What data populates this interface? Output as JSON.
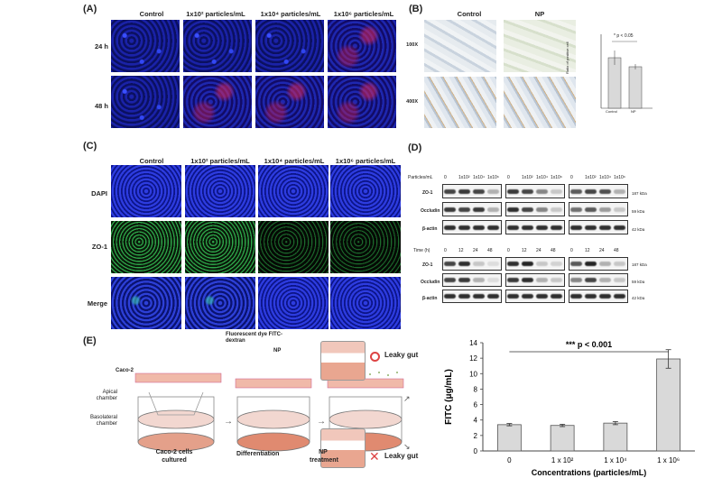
{
  "panels": {
    "a": {
      "label": "(A)",
      "columns": [
        "Control",
        "1x10² particles/mL",
        "1x10⁴ particles/mL",
        "1x10⁶ particles/mL"
      ],
      "rows": [
        "24 h",
        "48 h"
      ]
    },
    "b": {
      "label": "(B)",
      "columns": [
        "Control",
        "NP"
      ],
      "rows": [
        "100X",
        "400X"
      ],
      "sig": "* p < 0.05",
      "chart_ylabel": "Ratio of positive cell",
      "chart_categories": [
        "Control",
        "NP"
      ]
    },
    "c": {
      "label": "(C)",
      "columns": [
        "Control",
        "1x10² particles/mL",
        "1x10⁴ particles/mL",
        "1x10⁶ particles/mL"
      ],
      "rows": [
        "DAPI",
        "ZO-1",
        "Merge"
      ]
    },
    "d": {
      "label": "(D)",
      "top_header_label": "Particles/mL",
      "top_header": [
        "0",
        "1x10²",
        "1x10⁴",
        "1x10⁶"
      ],
      "bottom_header_label": "Time (h)",
      "bottom_header": [
        "0",
        "12",
        "24",
        "48"
      ],
      "rows": [
        "ZO-1",
        "Occludin",
        "β-actin"
      ],
      "kda": [
        "187 kDa",
        "59 kDa",
        "42 kDa"
      ]
    },
    "e": {
      "label": "(E)",
      "labels": {
        "caco2": "Caco-2",
        "apical": "Apical chamber",
        "basolateral": "Basolateral chamber",
        "cultured": "Caco-2 cells cultured",
        "differentiation": "Differentiation",
        "dye": "Fluorescent dye FITC-dextran",
        "np": "NP",
        "np_treatment": "NP treatment",
        "leaky": "Leaky gut"
      }
    }
  },
  "chart_data": [
    {
      "type": "bar",
      "title": "",
      "xlabel": "Concentrations (particles/mL)",
      "ylabel": "FITC (μg/mL)",
      "categories": [
        "0",
        "1 x 10²",
        "1 x 10⁴",
        "1 x 10⁶"
      ],
      "values": [
        3.4,
        3.3,
        3.6,
        11.9
      ],
      "errors": [
        0.15,
        0.15,
        0.2,
        1.2
      ],
      "ylim": [
        0,
        14
      ],
      "yticks": [
        "0",
        "2",
        "4",
        "6",
        "8",
        "10",
        "12",
        "14"
      ],
      "annotation": "*** p < 0.001"
    }
  ]
}
